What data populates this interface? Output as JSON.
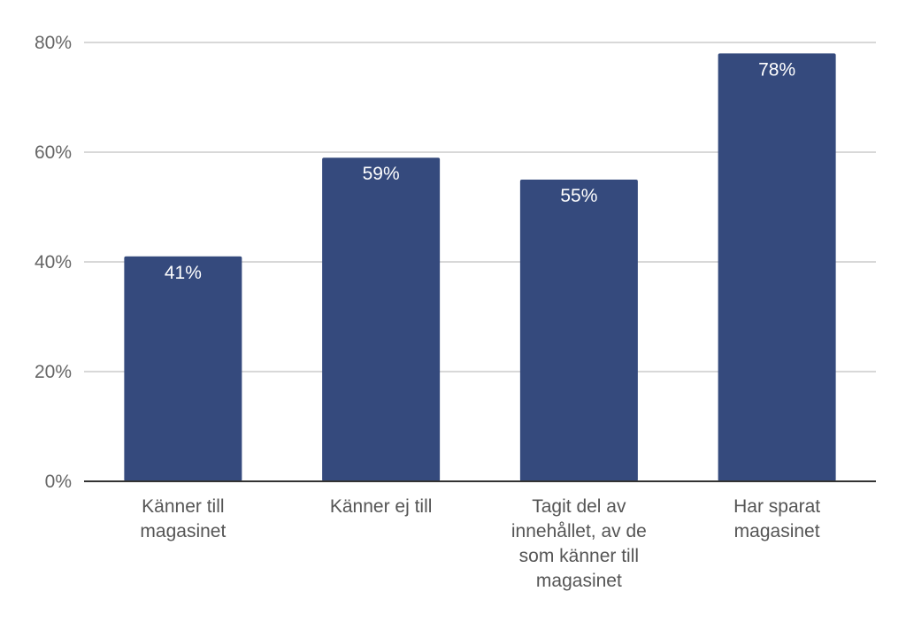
{
  "chart_data": {
    "type": "bar",
    "categories": [
      [
        "Känner till",
        "magasinet"
      ],
      [
        "Känner ej till"
      ],
      [
        "Tagit del av",
        "innehållet, av de",
        "som känner till",
        "magasinet"
      ],
      [
        "Har sparat",
        "magasinet"
      ]
    ],
    "values": [
      41,
      59,
      55,
      78
    ],
    "data_labels": [
      "41%",
      "59%",
      "55%",
      "78%"
    ],
    "ylim": [
      0,
      80
    ],
    "yticks": [
      0,
      20,
      40,
      60,
      80
    ],
    "ytick_labels": [
      "0%",
      "20%",
      "40%",
      "60%",
      "80%"
    ],
    "grid": true,
    "legend": "none",
    "colors": {
      "bar": "#354a7d",
      "grid": "#cccccc",
      "axis": "#333333"
    }
  }
}
